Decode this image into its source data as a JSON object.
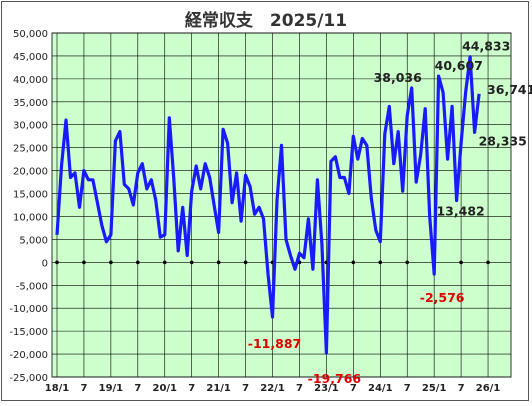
{
  "colors": {
    "plot_background": "#ccffcc",
    "line": "#1a1aff",
    "grid": "#000000",
    "positive_label": "#222222",
    "negative_label": "#e00000"
  },
  "chart_data": {
    "type": "line",
    "title": "経常収支　2025/11",
    "xlabel": "",
    "ylabel": "",
    "ylim": [
      -25000,
      50000
    ],
    "ytick_step": 5000,
    "grid": true,
    "legend": "none",
    "x_tick_labels": [
      "18/1",
      "7",
      "19/1",
      "7",
      "20/1",
      "7",
      "21/1",
      "7",
      "22/1",
      "7",
      "23/1",
      "7",
      "24/1",
      "7",
      "25/1",
      "7",
      "26/1"
    ],
    "x_tick_months": [
      "2018-01",
      "2018-07",
      "2019-01",
      "2019-07",
      "2020-01",
      "2020-07",
      "2021-01",
      "2021-07",
      "2022-01",
      "2022-07",
      "2023-01",
      "2023-07",
      "2024-01",
      "2024-07",
      "2025-01",
      "2025-07",
      "2026-01"
    ],
    "x": [
      "2018-01",
      "2018-02",
      "2018-03",
      "2018-04",
      "2018-05",
      "2018-06",
      "2018-07",
      "2018-08",
      "2018-09",
      "2018-10",
      "2018-11",
      "2018-12",
      "2019-01",
      "2019-02",
      "2019-03",
      "2019-04",
      "2019-05",
      "2019-06",
      "2019-07",
      "2019-08",
      "2019-09",
      "2019-10",
      "2019-11",
      "2019-12",
      "2020-01",
      "2020-02",
      "2020-03",
      "2020-04",
      "2020-05",
      "2020-06",
      "2020-07",
      "2020-08",
      "2020-09",
      "2020-10",
      "2020-11",
      "2020-12",
      "2021-01",
      "2021-02",
      "2021-03",
      "2021-04",
      "2021-05",
      "2021-06",
      "2021-07",
      "2021-08",
      "2021-09",
      "2021-10",
      "2021-11",
      "2021-12",
      "2022-01",
      "2022-02",
      "2022-03",
      "2022-04",
      "2022-05",
      "2022-06",
      "2022-07",
      "2022-08",
      "2022-09",
      "2022-10",
      "2022-11",
      "2022-12",
      "2023-01",
      "2023-02",
      "2023-03",
      "2023-04",
      "2023-05",
      "2023-06",
      "2023-07",
      "2023-08",
      "2023-09",
      "2023-10",
      "2023-11",
      "2023-12",
      "2024-01",
      "2024-02",
      "2024-03",
      "2024-04",
      "2024-05",
      "2024-06",
      "2024-07",
      "2024-08",
      "2024-09",
      "2024-10",
      "2024-11",
      "2024-12",
      "2025-01",
      "2025-02",
      "2025-03",
      "2025-04",
      "2025-05",
      "2025-06",
      "2025-07",
      "2025-08",
      "2025-09",
      "2025-10",
      "2025-11"
    ],
    "series": [
      {
        "values": [
          6000,
          21000,
          31000,
          18500,
          19500,
          12000,
          20000,
          18000,
          18000,
          13000,
          8000,
          4500,
          6000,
          26500,
          28500,
          17000,
          16000,
          12500,
          19500,
          21500,
          16000,
          18000,
          13500,
          5500,
          6000,
          31500,
          18500,
          2500,
          12000,
          1500,
          15500,
          21000,
          16000,
          21500,
          18500,
          12500,
          6500,
          29000,
          26000,
          13000,
          19500,
          9000,
          19000,
          16500,
          10500,
          12000,
          9500,
          -2500,
          -11887,
          13500,
          25500,
          5000,
          1500,
          -1500,
          2000,
          1000,
          9500,
          -1500,
          18000,
          4000,
          -19766,
          22000,
          23000,
          18500,
          18500,
          15000,
          27500,
          22500,
          27000,
          25500,
          14000,
          7000,
          4500,
          28000,
          34000,
          21500,
          28500,
          15500,
          32000,
          38036,
          17500,
          23500,
          33500,
          10000,
          -2576,
          40607,
          37000,
          22500,
          34000,
          13482,
          26000,
          37000,
          44833,
          28335,
          36741
        ]
      }
    ],
    "annotations": [
      {
        "text": "44,833",
        "x": "2025-09",
        "value": 44833,
        "kind": "positive"
      },
      {
        "text": "40,607",
        "x": "2025-02",
        "value": 40607,
        "kind": "positive"
      },
      {
        "text": "38,036",
        "x": "2024-08",
        "value": 38036,
        "kind": "positive"
      },
      {
        "text": "36,741",
        "x": "2025-11",
        "value": 36741,
        "kind": "positive"
      },
      {
        "text": "28,335",
        "x": "2025-10",
        "value": 28335,
        "kind": "positive"
      },
      {
        "text": "13,482",
        "x": "2025-06",
        "value": 13482,
        "kind": "positive"
      },
      {
        "text": "-2,576",
        "x": "2025-01",
        "value": -2576,
        "kind": "negative"
      },
      {
        "text": "-11,887",
        "x": "2022-01",
        "value": -11887,
        "kind": "negative"
      },
      {
        "text": "-19,766",
        "x": "2023-01",
        "value": -19766,
        "kind": "negative"
      }
    ]
  }
}
